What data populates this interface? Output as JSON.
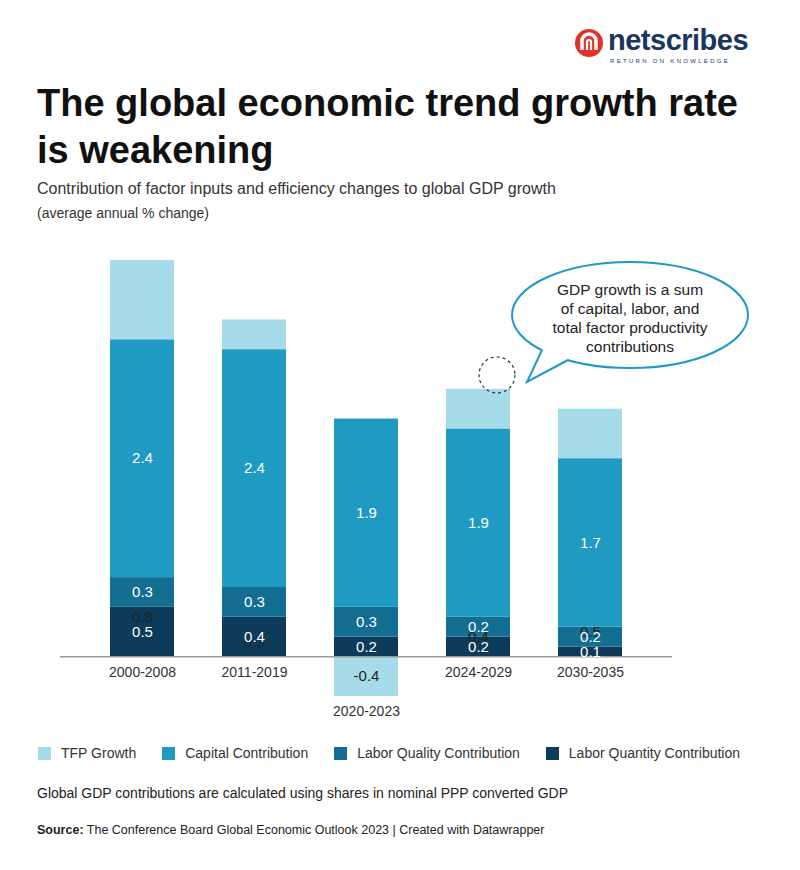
{
  "chart_data": {
    "type": "bar",
    "title": "The global economic trend growth rate is weakening",
    "subtitle": "Contribution of factor inputs and efficiency changes to global GDP growth",
    "subtitle_unit": "(average annual % change)",
    "logo": "netscribes",
    "logo_tagline": "RETURN ON KNOWLEDGE",
    "annotation": [
      "GDP growth is a sum",
      "of capital, labor, and",
      "total factor productivity",
      "contributions"
    ],
    "note": "Global GDP contributions are calculated using shares in nominal PPP converted GDP",
    "source_label": "Source:",
    "source": "The Conference Board Global Economic Outlook 2023 | Created with Datawrapper",
    "categories": [
      "2000-2008",
      "2011-2019",
      "2020-2023",
      "2024-2029",
      "2030-2035"
    ],
    "series": [
      {
        "name": "TFP Growth",
        "color": "#a6dbe9",
        "values": [
          0.8,
          0.3,
          -0.4,
          0.4,
          0.5
        ]
      },
      {
        "name": "Capital Contribution",
        "color": "#1f9ac3",
        "values": [
          2.4,
          2.4,
          1.9,
          1.9,
          1.7
        ]
      },
      {
        "name": "Labor Quality Contribution",
        "color": "#136e91",
        "values": [
          0.3,
          0.3,
          0.3,
          0.2,
          0.2
        ]
      },
      {
        "name": "Labor Quantity Contribution",
        "color": "#0d3b59",
        "values": [
          0.5,
          0.4,
          0.2,
          0.2,
          0.1
        ]
      }
    ],
    "ylim": [
      -0.4,
      4
    ],
    "yticks": [],
    "stacked": true,
    "data_labels": true,
    "tick_labels": "x",
    "grid": false,
    "legend": "bottom"
  }
}
